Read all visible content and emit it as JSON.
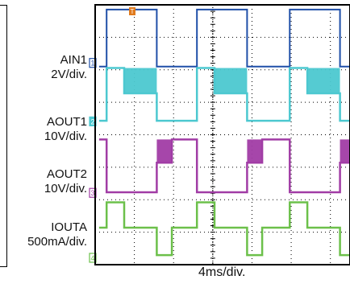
{
  "chart_data": {
    "type": "line",
    "title": "",
    "xlabel": "4ms/div.",
    "ylabel": "",
    "grid": true,
    "time_per_div_ms": 4,
    "series": [
      {
        "name": "AIN1",
        "scale": "2V/div.",
        "marker": "1",
        "color": "#1f4fa8",
        "points": [
          [
            0.0,
            0.0
          ],
          [
            0.3,
            0.0
          ],
          [
            0.3,
            2.7
          ],
          [
            2.3,
            2.7
          ],
          [
            2.3,
            0.0
          ],
          [
            3.9,
            0.0
          ],
          [
            3.9,
            2.7
          ],
          [
            5.9,
            2.7
          ],
          [
            5.9,
            0.0
          ],
          [
            7.6,
            0.0
          ],
          [
            7.6,
            2.7
          ],
          [
            9.6,
            2.7
          ],
          [
            9.6,
            0.0
          ],
          [
            10.0,
            0.0
          ]
        ]
      },
      {
        "name": "AOUT1",
        "scale": "10V/div.",
        "marker": "2",
        "color": "#4cc8d0",
        "points": [
          [
            0.0,
            0.2
          ],
          [
            0.3,
            0.2
          ],
          [
            0.3,
            2.7
          ],
          [
            1.0,
            2.7
          ],
          [
            1.0,
            1.5
          ],
          [
            2.3,
            1.5
          ],
          [
            2.3,
            0.2
          ],
          [
            3.9,
            0.2
          ],
          [
            3.9,
            2.7
          ],
          [
            4.6,
            2.7
          ],
          [
            4.6,
            1.5
          ],
          [
            5.9,
            1.5
          ],
          [
            5.9,
            0.2
          ],
          [
            7.6,
            0.2
          ],
          [
            7.6,
            2.7
          ],
          [
            8.3,
            2.7
          ],
          [
            8.3,
            1.5
          ],
          [
            9.6,
            1.5
          ],
          [
            9.6,
            0.2
          ],
          [
            10.0,
            0.2
          ]
        ]
      },
      {
        "name": "AOUT2",
        "scale": "10V/div.",
        "marker": "3",
        "color": "#a13ca5",
        "points": [
          [
            0.0,
            2.7
          ],
          [
            0.3,
            2.7
          ],
          [
            0.3,
            0.2
          ],
          [
            2.3,
            0.2
          ],
          [
            2.3,
            1.6
          ],
          [
            2.9,
            1.6
          ],
          [
            2.9,
            2.7
          ],
          [
            3.9,
            2.7
          ],
          [
            3.9,
            0.2
          ],
          [
            5.9,
            0.2
          ],
          [
            5.9,
            1.6
          ],
          [
            6.5,
            1.6
          ],
          [
            6.5,
            2.7
          ],
          [
            7.6,
            2.7
          ],
          [
            7.6,
            0.2
          ],
          [
            9.6,
            0.2
          ],
          [
            9.6,
            1.6
          ],
          [
            10.0,
            1.6
          ]
        ]
      },
      {
        "name": "IOUTA",
        "scale": "500mA/div.",
        "marker": "4",
        "color": "#6cc04a",
        "points": [
          [
            0.0,
            1.6
          ],
          [
            0.3,
            1.6
          ],
          [
            0.3,
            2.8
          ],
          [
            1.0,
            2.8
          ],
          [
            1.0,
            1.6
          ],
          [
            2.3,
            1.6
          ],
          [
            2.3,
            0.3
          ],
          [
            2.9,
            0.3
          ],
          [
            2.9,
            1.6
          ],
          [
            3.9,
            1.6
          ],
          [
            3.9,
            2.8
          ],
          [
            4.6,
            2.8
          ],
          [
            4.6,
            1.6
          ],
          [
            5.9,
            1.6
          ],
          [
            5.9,
            0.3
          ],
          [
            6.5,
            0.3
          ],
          [
            6.5,
            1.6
          ],
          [
            7.6,
            1.6
          ],
          [
            7.6,
            2.8
          ],
          [
            8.3,
            2.8
          ],
          [
            8.3,
            1.6
          ],
          [
            9.6,
            1.6
          ],
          [
            9.6,
            0.3
          ],
          [
            10.0,
            0.3
          ]
        ]
      }
    ],
    "trigger_marker": "T"
  }
}
